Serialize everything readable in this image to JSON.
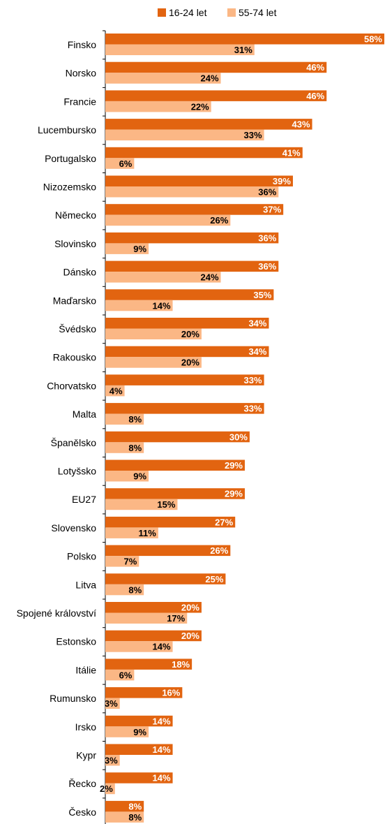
{
  "chart_data": {
    "type": "bar",
    "orientation": "horizontal",
    "categories": [
      "Finsko",
      "Norsko",
      "Francie",
      "Lucembursko",
      "Portugalsko",
      "Nizozemsko",
      "Německo",
      "Slovinsko",
      "Dánsko",
      "Maďarsko",
      "Švédsko",
      "Rakousko",
      "Chorvatsko",
      "Malta",
      "Španělsko",
      "Lotyšsko",
      "EU27",
      "Slovensko",
      "Polsko",
      "Litva",
      "Spojené království",
      "Estonsko",
      "Itálie",
      "Rumunsko",
      "Irsko",
      "Kypr",
      "Řecko",
      "Česko"
    ],
    "series": [
      {
        "name": "16-24 let",
        "color": "#e26410",
        "label_color": "#ffffff",
        "values": [
          58,
          46,
          46,
          43,
          41,
          39,
          37,
          36,
          36,
          35,
          34,
          34,
          33,
          33,
          30,
          29,
          29,
          27,
          26,
          25,
          20,
          20,
          18,
          16,
          14,
          14,
          14,
          8
        ]
      },
      {
        "name": "55-74 let",
        "color": "#fbb785",
        "label_color": "#000000",
        "values": [
          31,
          24,
          22,
          33,
          6,
          36,
          26,
          9,
          24,
          14,
          20,
          20,
          4,
          8,
          8,
          9,
          15,
          11,
          7,
          8,
          17,
          14,
          6,
          3,
          9,
          3,
          2,
          8
        ]
      }
    ],
    "value_suffix": "%",
    "xlim": [
      0,
      58
    ],
    "legend_position": "top-center",
    "grid": false
  }
}
